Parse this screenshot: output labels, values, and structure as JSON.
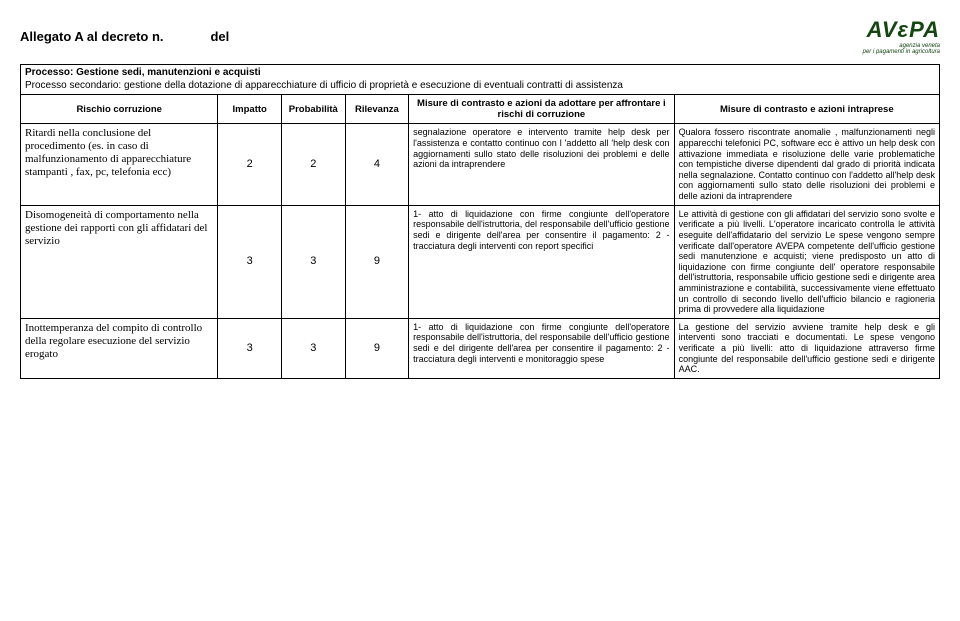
{
  "header": {
    "title_left": "Allegato A al decreto n.",
    "title_right": "del",
    "logo_main": "AVεPA",
    "logo_sub": "agenzia veneta",
    "logo_sub2": "per i pagamenti in agricoltura"
  },
  "process": {
    "line1": "Processo: Gestione sedi, manutenzioni e acquisti",
    "line2": "Processo secondario: gestione della dotazione di apparecchiature di ufficio di proprietà e esecuzione di eventuali contratti di assistenza"
  },
  "columns": {
    "c1": "Rischio corruzione",
    "c2": "Impatto",
    "c3": "Probabilità",
    "c4": "Rilevanza",
    "c5": "Misure di contrasto e  azioni da adottare per affrontare i rischi di corruzione",
    "c6": "Misure di contrasto e azioni intraprese"
  },
  "rows": [
    {
      "risk": "Ritardi nella conclusione del procedimento (es. in caso di malfunzionamento di apparecchiature stampanti , fax, pc, telefonia ecc)",
      "impatto": "2",
      "prob": "2",
      "ril": "4",
      "mis1": "segnalazione operatore e intervento  tramite help desk per l'assistenza e contatto continuo con l 'addetto all 'help desk con aggiornamenti sullo stato delle risoluzioni dei problemi e delle azioni da intraprendere",
      "mis2": "Qualora fossero riscontrate anomalie , malfunzionamenti negli apparecchi telefonici PC, software ecc è attivo un help desk con attivazione immediata e risoluzione delle varie problematiche con tempistiche diverse dipendenti dal grado di priorità indicata nella segnalazione. Contatto continuo con l'addetto all'help desk con aggiornamenti sullo stato delle risoluzioni dei problemi e delle azioni da intraprendere"
    },
    {
      "risk": "Disomogeneità di comportamento nella gestione dei rapporti con gli affidatari del servizio",
      "impatto": "3",
      "prob": "3",
      "ril": "9",
      "mis1": "1- atto di liquidazione con firme congiunte dell'operatore responsabile dell'istruttoria, del responsabile dell'ufficio gestione sedi e dirigente dell'area per consentire il pagamento: 2 - tracciatura degli interventi con report specifici",
      "mis2": "Le attività di gestione con gli affidatari del servizio sono svolte e verificate a più livelli. L'operatore incaricato controlla le attività eseguite dell'affidatario del servizio Le spese vengono sempre verificate dall'operatore AVEPA competente dell'ufficio gestione sedi manutenzione e acquisti; viene predisposto un atto di liquidazione con firme congiunte dell' operatore responsabile dell'istruttoria, responsabile ufficio gestione sedi e dirigente area amministrazione e contabilità, successivamente viene effettuato un controllo di secondo livello dell'ufficio bilancio e ragioneria prima di provvedere alla liquidazione"
    },
    {
      "risk": "Inottemperanza del compito di controllo della regolare esecuzione del servizio erogato",
      "impatto": "3",
      "prob": "3",
      "ril": "9",
      "mis1": "1- atto di liquidazione con firme congiunte dell'operatore responsabile dell'istruttoria, del responsabile dell'ufficio gestione sedi e del dirigente dell'area per consentire il pagamento: 2 - tracciatura degli interventi e monitoraggio spese",
      "mis2": "La gestione del servizio avviene tramite help desk e gli interventi sono tracciati e documentati. Le spese vengono verificate a più livelli: atto di liquidazione attraverso firme congiunte del responsabile dell'ufficio gestione sedi e dirigente AAC."
    }
  ]
}
